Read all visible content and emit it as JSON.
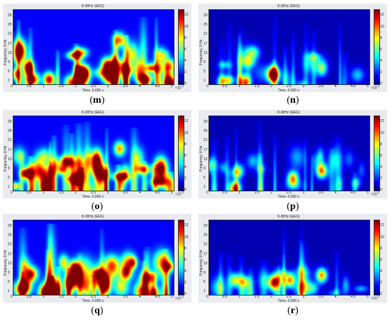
{
  "chart_data": [
    {
      "label": "m",
      "type": "heatmap",
      "title": "8-30Hz (EEG)",
      "ylabel": "Frequency, 8 Hz",
      "xlabel": "Time, 0.000 s",
      "xticks": [
        "0",
        "0.5",
        "1",
        "1.5",
        "2",
        "2.5",
        "3",
        "3.5",
        "4",
        "4.5",
        "5"
      ],
      "xunit": "10",
      "xunit_exp": "-3",
      "yticks": [
        "1",
        "5",
        "9",
        "13",
        "17",
        "21",
        "25",
        "29"
      ],
      "cbar_ticks": [
        "0",
        "2",
        "4",
        "6",
        "8",
        "10",
        "12"
      ],
      "intensity": "high",
      "hotspots": [
        {
          "t": 1.1,
          "f": 3,
          "v": 11
        },
        {
          "t": 0.45,
          "f": 8,
          "v": 9
        },
        {
          "t": 2.2,
          "f": 6,
          "v": 11
        },
        {
          "t": 3.3,
          "f": 19,
          "v": 8
        },
        {
          "t": 2.9,
          "f": 9,
          "v": 7
        }
      ]
    },
    {
      "label": "n",
      "type": "heatmap",
      "title": "8-30Hz (EEG)",
      "ylabel": "Frequency, 8 Hz",
      "xlabel": "Time, 0.000 s",
      "xticks": [
        "0",
        "0.5",
        "1",
        "1.5",
        "2",
        "2.5",
        "3",
        "3.5",
        "4",
        "4.5",
        "5"
      ],
      "xunit": "10",
      "xunit_exp": "-3",
      "yticks": [
        "1",
        "5",
        "9",
        "13",
        "17",
        "21",
        "25",
        "29"
      ],
      "cbar_ticks": [
        "0",
        "2",
        "4",
        "6",
        "8",
        "10",
        "12"
      ],
      "intensity": "low",
      "hotspots": [
        {
          "t": 2.0,
          "f": 5,
          "v": 12
        },
        {
          "t": 0.4,
          "f": 2,
          "v": 6
        },
        {
          "t": 1.1,
          "f": 2,
          "v": 9
        },
        {
          "t": 3.5,
          "f": 7,
          "v": 5
        }
      ]
    },
    {
      "label": "o",
      "type": "heatmap",
      "title": "8-30Hz (EEG)",
      "ylabel": "Frequency, 8 Hz",
      "xlabel": "Time, 0.000 s",
      "xticks": [
        "0",
        "0.5",
        "1",
        "1.5",
        "2",
        "2.5",
        "3",
        "3.5",
        "4",
        "4.5",
        "5"
      ],
      "xunit": "10",
      "xunit_exp": "-3",
      "yticks": [
        "1",
        "5",
        "9",
        "13",
        "17",
        "21",
        "25",
        "29"
      ],
      "cbar_ticks": [
        "0",
        "2",
        "4",
        "6",
        "8",
        "10",
        "12"
      ],
      "intensity": "high",
      "hotspots": [
        {
          "t": 1.0,
          "f": 2,
          "v": 11
        },
        {
          "t": 2.0,
          "f": 6,
          "v": 10
        },
        {
          "t": 3.3,
          "f": 18,
          "v": 8
        },
        {
          "t": 0.4,
          "f": 8,
          "v": 8
        },
        {
          "t": 2.7,
          "f": 6,
          "v": 8
        }
      ]
    },
    {
      "label": "p",
      "type": "heatmap",
      "title": "8-30Hz (EEG)",
      "ylabel": "Frequency, 8 Hz",
      "xlabel": "Time, 0.000 s",
      "xticks": [
        "0",
        "0.5",
        "1",
        "1.5",
        "2",
        "2.5",
        "3",
        "3.5",
        "4",
        "4.5",
        "5"
      ],
      "xunit": "10",
      "xunit_exp": "-3",
      "yticks": [
        "1",
        "5",
        "9",
        "13",
        "17",
        "21",
        "25",
        "29"
      ],
      "cbar_ticks": [
        "0",
        "2",
        "4",
        "6",
        "8",
        "10",
        "12"
      ],
      "intensity": "low",
      "hotspots": [
        {
          "t": 0.8,
          "f": 2,
          "v": 11
        },
        {
          "t": 2.6,
          "f": 6,
          "v": 9
        },
        {
          "t": 3.5,
          "f": 9,
          "v": 9
        },
        {
          "t": 0.9,
          "f": 9,
          "v": 6
        }
      ]
    },
    {
      "label": "q",
      "type": "heatmap",
      "title": "8-30Hz (EEG)",
      "ylabel": "Frequency, 8 Hz",
      "xlabel": "Time, 0.000 s",
      "xticks": [
        "0",
        "0.5",
        "1",
        "1.5",
        "2",
        "2.5",
        "3",
        "3.5",
        "4",
        "4.5",
        "5"
      ],
      "xunit": "10",
      "xunit_exp": "-3",
      "yticks": [
        "1",
        "5",
        "9",
        "13",
        "17",
        "21",
        "25",
        "29"
      ],
      "cbar_ticks": [
        "0",
        "2",
        "4",
        "6",
        "8",
        "10",
        "12"
      ],
      "intensity": "high",
      "hotspots": [
        {
          "t": 2.8,
          "f": 8,
          "v": 10
        },
        {
          "t": 3.5,
          "f": 10,
          "v": 9
        },
        {
          "t": 1.0,
          "f": 2,
          "v": 9
        },
        {
          "t": 2.0,
          "f": 9,
          "v": 8
        },
        {
          "t": 0.5,
          "f": 9,
          "v": 7
        }
      ]
    },
    {
      "label": "r",
      "type": "heatmap",
      "title": "8-30Hz (EEG)",
      "ylabel": "Frequency, 8 Hz",
      "xlabel": "Time, 0.000 s",
      "xticks": [
        "0",
        "0.5",
        "1",
        "1.5",
        "2",
        "2.5",
        "3",
        "3.5",
        "4",
        "4.5",
        "5"
      ],
      "xunit": "10",
      "xunit_exp": "-3",
      "yticks": [
        "1",
        "5",
        "9",
        "13",
        "17",
        "21",
        "25",
        "29"
      ],
      "cbar_ticks": [
        "0",
        "2",
        "4",
        "6",
        "8",
        "10",
        "12"
      ],
      "intensity": "low",
      "hotspots": [
        {
          "t": 2.0,
          "f": 6,
          "v": 10
        },
        {
          "t": 2.5,
          "f": 7,
          "v": 9
        },
        {
          "t": 3.5,
          "f": 9,
          "v": 9
        },
        {
          "t": 0.8,
          "f": 7,
          "v": 7
        }
      ]
    }
  ]
}
